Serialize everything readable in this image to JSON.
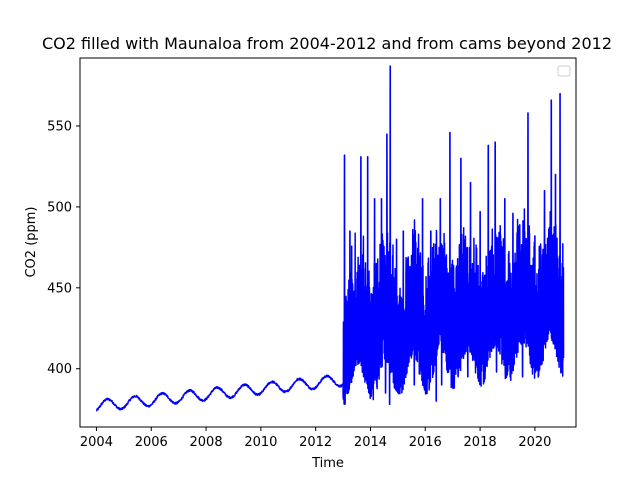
{
  "chart_data": {
    "type": "line",
    "title": "CO2 filled with Maunaloa from 2004-2012 and from cams beyond 2012",
    "xlabel": "Time",
    "ylabel": "CO2 (ppm)",
    "xlim": [
      2003.4,
      2021.5
    ],
    "ylim": [
      364,
      592
    ],
    "xticks": [
      2004,
      2006,
      2008,
      2010,
      2012,
      2014,
      2016,
      2018,
      2020
    ],
    "yticks": [
      400,
      450,
      500,
      550
    ],
    "grid": false,
    "legend": {
      "position": "top-right",
      "entries": [
        ""
      ]
    },
    "series": [
      {
        "color": "#0000ff",
        "segments": [
          {
            "source": "Mauna Loa",
            "x_range": [
              2004.0,
              2013.0
            ],
            "trend_start": 377,
            "trend_end": 393,
            "seasonal_amplitude": 3.5,
            "sample_points": [
              {
                "x": 2004.0,
                "y": 377
              },
              {
                "x": 2004.4,
                "y": 381
              },
              {
                "x": 2004.75,
                "y": 374
              },
              {
                "x": 2005.4,
                "y": 383
              },
              {
                "x": 2005.75,
                "y": 376
              },
              {
                "x": 2006.4,
                "y": 385
              },
              {
                "x": 2006.75,
                "y": 378
              },
              {
                "x": 2007.4,
                "y": 387
              },
              {
                "x": 2007.75,
                "y": 380
              },
              {
                "x": 2008.4,
                "y": 389
              },
              {
                "x": 2008.75,
                "y": 382
              },
              {
                "x": 2009.4,
                "y": 390
              },
              {
                "x": 2009.75,
                "y": 384
              },
              {
                "x": 2010.4,
                "y": 393
              },
              {
                "x": 2010.75,
                "y": 386
              },
              {
                "x": 2011.4,
                "y": 395
              },
              {
                "x": 2011.75,
                "y": 388
              },
              {
                "x": 2012.4,
                "y": 397
              },
              {
                "x": 2012.75,
                "y": 390
              },
              {
                "x": 2013.0,
                "y": 395
              }
            ]
          },
          {
            "source": "CAMS",
            "x_range": [
              2013.0,
              2021.05
            ],
            "base_start": 412,
            "base_end": 430,
            "approx_min": 378,
            "approx_max": 587,
            "spikes": [
              {
                "x": 2013.05,
                "y": 532
              },
              {
                "x": 2013.25,
                "y": 485
              },
              {
                "x": 2013.65,
                "y": 531
              },
              {
                "x": 2013.9,
                "y": 531
              },
              {
                "x": 2014.15,
                "y": 505
              },
              {
                "x": 2014.4,
                "y": 505
              },
              {
                "x": 2014.6,
                "y": 545
              },
              {
                "x": 2014.72,
                "y": 587
              },
              {
                "x": 2014.95,
                "y": 480
              },
              {
                "x": 2015.2,
                "y": 485
              },
              {
                "x": 2015.5,
                "y": 470
              },
              {
                "x": 2015.9,
                "y": 505
              },
              {
                "x": 2016.2,
                "y": 485
              },
              {
                "x": 2016.55,
                "y": 505
              },
              {
                "x": 2016.9,
                "y": 546
              },
              {
                "x": 2017.3,
                "y": 530
              },
              {
                "x": 2017.65,
                "y": 515
              },
              {
                "x": 2018.0,
                "y": 497
              },
              {
                "x": 2018.3,
                "y": 538
              },
              {
                "x": 2018.55,
                "y": 540
              },
              {
                "x": 2018.9,
                "y": 505
              },
              {
                "x": 2019.2,
                "y": 496
              },
              {
                "x": 2019.55,
                "y": 505
              },
              {
                "x": 2019.75,
                "y": 558
              },
              {
                "x": 2020.0,
                "y": 482
              },
              {
                "x": 2020.35,
                "y": 510
              },
              {
                "x": 2020.6,
                "y": 566
              },
              {
                "x": 2020.75,
                "y": 520
              },
              {
                "x": 2020.92,
                "y": 570
              },
              {
                "x": 2021.0,
                "y": 465
              }
            ],
            "dips": [
              {
                "x": 2014.55,
                "y": 385
              },
              {
                "x": 2014.7,
                "y": 378
              },
              {
                "x": 2015.6,
                "y": 390
              },
              {
                "x": 2016.4,
                "y": 380
              },
              {
                "x": 2016.6,
                "y": 390
              },
              {
                "x": 2017.55,
                "y": 395
              },
              {
                "x": 2018.6,
                "y": 398
              },
              {
                "x": 2019.55,
                "y": 395
              },
              {
                "x": 2020.3,
                "y": 405
              }
            ]
          }
        ]
      }
    ]
  }
}
